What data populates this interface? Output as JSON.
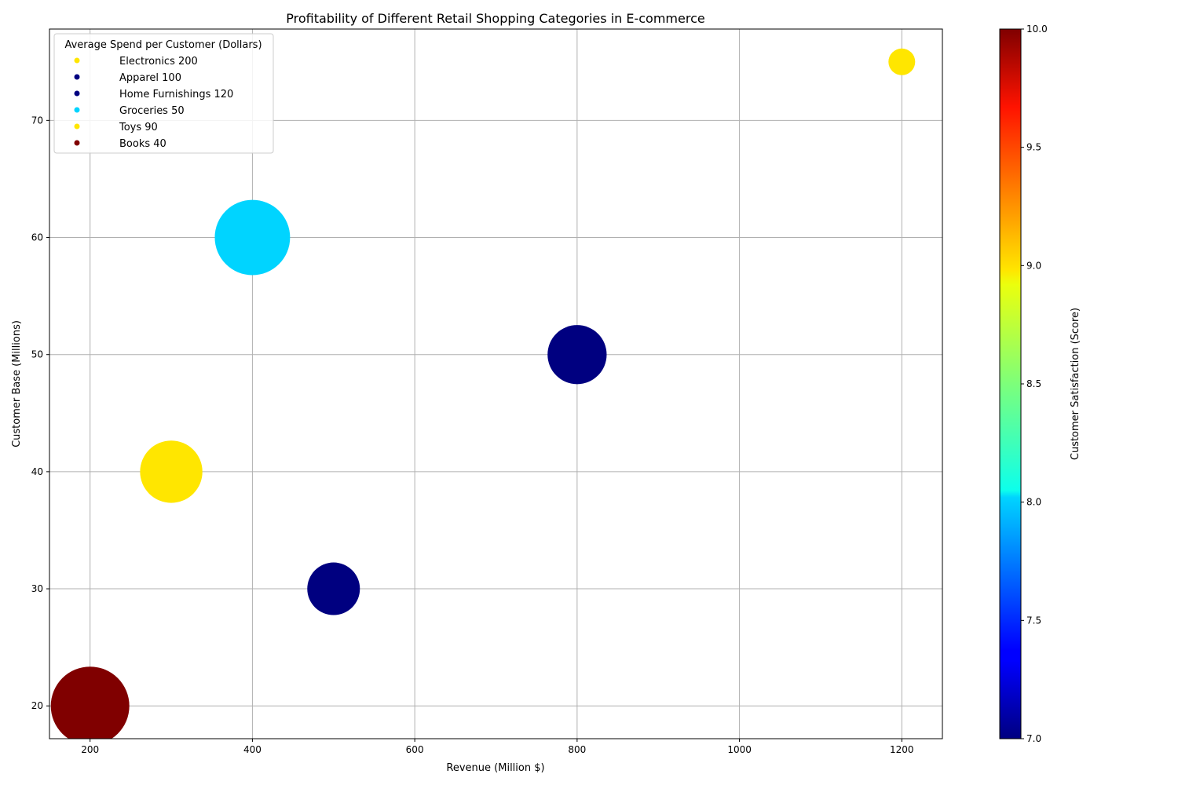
{
  "chart_data": {
    "type": "scatter",
    "title": "Profitability of Different Retail Shopping Categories in E-commerce",
    "xlabel": "Revenue (Million $)",
    "ylabel": "Customer Base (Millions)",
    "xlim": [
      150,
      1250
    ],
    "ylim": [
      17.2,
      77.8
    ],
    "xticks": [
      200,
      400,
      600,
      800,
      1000,
      1200
    ],
    "yticks": [
      20,
      30,
      40,
      50,
      60,
      70
    ],
    "grid": true,
    "legend": {
      "title": "Average Spend per Customer (Dollars)",
      "placement": "top-left"
    },
    "colorbar": {
      "label": "Customer Satisfaction (Score)",
      "range": [
        7.0,
        10.0
      ],
      "ticks": [
        "7.0",
        "7.5",
        "8.0",
        "8.5",
        "9.0",
        "9.5",
        "10.0"
      ],
      "colormap": "jet"
    },
    "points": [
      {
        "label": "Electronics 200",
        "category": "Electronics",
        "x": 1200,
        "y": 75,
        "avg_spend": 200,
        "satisfaction": 9,
        "color": "#ffe600"
      },
      {
        "label": "Apparel 100",
        "category": "Apparel",
        "x": 800,
        "y": 50,
        "avg_spend": 100,
        "satisfaction": 7,
        "color": "#000080"
      },
      {
        "label": "Home Furnishings 120",
        "category": "Home Furnishings",
        "x": 500,
        "y": 30,
        "avg_spend": 120,
        "satisfaction": 7,
        "color": "#000080"
      },
      {
        "label": "Groceries 50",
        "category": "Groceries",
        "x": 400,
        "y": 60,
        "avg_spend": 50,
        "satisfaction": 8,
        "color": "#00d4ff"
      },
      {
        "label": "Toys 90",
        "category": "Toys",
        "x": 300,
        "y": 40,
        "avg_spend": 90,
        "satisfaction": 9,
        "color": "#ffe600"
      },
      {
        "label": "Books 40",
        "category": "Books",
        "x": 200,
        "y": 20,
        "avg_spend": 40,
        "satisfaction": 10,
        "color": "#800000"
      }
    ]
  }
}
